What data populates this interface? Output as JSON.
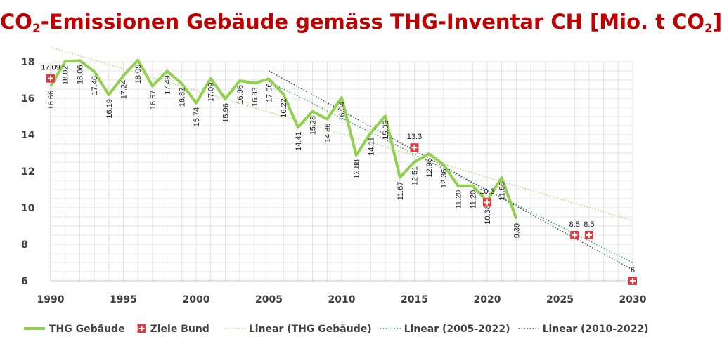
{
  "chart_data": {
    "type": "line",
    "title_parts": [
      "CO",
      "2",
      "-Emissionen Gebäude gemäss THG-Inventar CH [Mio. t CO",
      "2",
      "]"
    ],
    "xlim": [
      1990,
      2030
    ],
    "ylim": [
      6,
      18
    ],
    "x_ticks": [
      "1990",
      "1995",
      "2000",
      "2005",
      "2010",
      "2015",
      "2020",
      "2025",
      "2030"
    ],
    "y_ticks": [
      "6",
      "8",
      "10",
      "12",
      "14",
      "16",
      "18"
    ],
    "grid": true,
    "legend_position": "bottom",
    "series": [
      {
        "name": "THG Gebäude",
        "color": "#92d050",
        "x": [
          1990,
          1991,
          1992,
          1993,
          1994,
          1995,
          1996,
          1997,
          1998,
          1999,
          2000,
          2001,
          2002,
          2003,
          2004,
          2005,
          2006,
          2007,
          2008,
          2009,
          2010,
          2011,
          2012,
          2013,
          2014,
          2015,
          2016,
          2017,
          2018,
          2019,
          2020,
          2021,
          2022
        ],
        "values": [
          16.66,
          18.02,
          18.06,
          17.46,
          16.19,
          17.24,
          18.09,
          16.67,
          17.49,
          16.82,
          15.74,
          17.09,
          15.96,
          16.96,
          16.83,
          17.06,
          16.22,
          14.41,
          15.28,
          14.86,
          16.04,
          12.88,
          14.11,
          15.03,
          11.67,
          12.51,
          12.96,
          12.36,
          11.2,
          11.2,
          10.38,
          11.66,
          9.39
        ],
        "labels": [
          "16.66",
          "18.02",
          "18.06",
          "17.46",
          "16.19",
          "17.24",
          "18.09",
          "16.67",
          "17.49",
          "16.82",
          "15.74",
          "17.09",
          "15.96",
          "16.96",
          "16.83",
          "17.06",
          "16.22",
          "14.41",
          "15.28",
          "14.86",
          "16.04",
          "12.88",
          "14.11",
          "15.03",
          "11.67",
          "12.51",
          "12.96",
          "12.36",
          "11.20",
          "11.20",
          "10.38",
          "11.66",
          "9.39"
        ]
      },
      {
        "name": "Ziele Bund",
        "color": "#e0393e",
        "x": [
          1990,
          2015,
          2020,
          2026,
          2027,
          2030
        ],
        "values": [
          17.09,
          13.3,
          10.3,
          8.5,
          8.5,
          6
        ],
        "labels": [
          "17.09",
          "13.3",
          "10.3",
          "8.5",
          "8.5",
          "6"
        ]
      },
      {
        "name": "Linear (THG Gebäude)",
        "color": "#a9d86e",
        "x": [
          1990,
          2030
        ],
        "values": [
          18.8,
          9.3
        ]
      },
      {
        "name": "Linear (2005-2022)",
        "color": "#2e9a6e",
        "x": [
          2005,
          2030
        ],
        "values": [
          16.9,
          7.0
        ]
      },
      {
        "name": "Linear (2010-2022)",
        "color": "#404040",
        "x": [
          2005,
          2030
        ],
        "values": [
          17.5,
          6.6
        ]
      }
    ]
  }
}
